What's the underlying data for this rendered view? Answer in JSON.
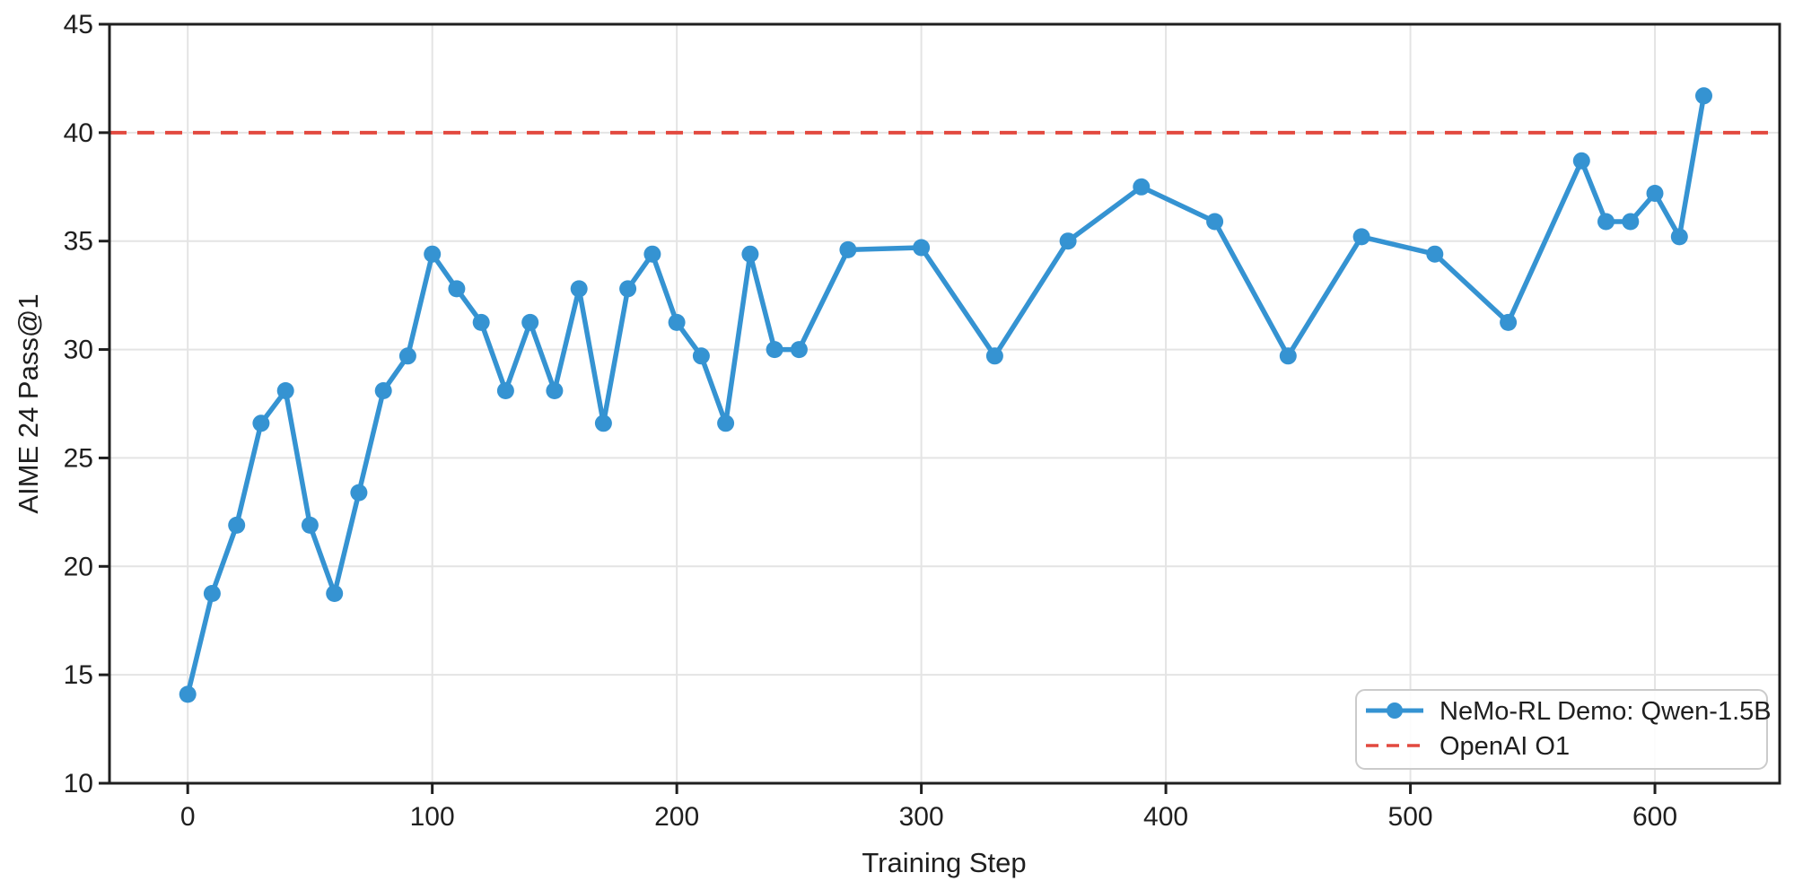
{
  "chart_data": {
    "type": "line",
    "title": "",
    "xlabel": "Training Step",
    "ylabel": "AIME 24 Pass@1",
    "xlim": [
      -32,
      651
    ],
    "ylim": [
      10,
      45
    ],
    "x_ticks": [
      0,
      100,
      200,
      300,
      400,
      500,
      600
    ],
    "y_ticks": [
      10,
      15,
      20,
      25,
      30,
      35,
      40,
      45
    ],
    "grid": true,
    "legend_position": "lower right",
    "series": [
      {
        "name": "NeMo-RL Demo: Qwen-1.5B",
        "style": "solid-line-with-circle-markers",
        "color": "#3593d2",
        "x": [
          0,
          10,
          20,
          30,
          40,
          50,
          60,
          70,
          80,
          90,
          100,
          110,
          120,
          130,
          140,
          150,
          160,
          170,
          180,
          190,
          200,
          210,
          220,
          230,
          240,
          250,
          270,
          300,
          330,
          360,
          390,
          420,
          450,
          480,
          510,
          540,
          570,
          580,
          590,
          600,
          610,
          620
        ],
        "y": [
          14.1,
          18.75,
          21.9,
          26.6,
          28.1,
          21.9,
          18.75,
          23.4,
          28.1,
          29.7,
          34.4,
          32.8,
          31.25,
          28.1,
          31.25,
          28.1,
          32.8,
          26.6,
          32.8,
          34.4,
          31.25,
          29.7,
          26.6,
          34.4,
          30.0,
          30.0,
          34.6,
          34.7,
          29.7,
          35.0,
          37.5,
          35.9,
          29.7,
          35.2,
          34.4,
          31.25,
          38.7,
          35.9,
          35.9,
          37.2,
          35.2,
          41.7
        ]
      },
      {
        "name": "OpenAI O1",
        "style": "dashed-horizontal-reference-line",
        "color": "#e2493f",
        "value": 40
      }
    ]
  },
  "colors": {
    "background": "#ffffff",
    "grid": "#e4e4e4",
    "axis": "#1f1f1f",
    "series_blue": "#3593d2",
    "reference_red": "#e2493f"
  }
}
